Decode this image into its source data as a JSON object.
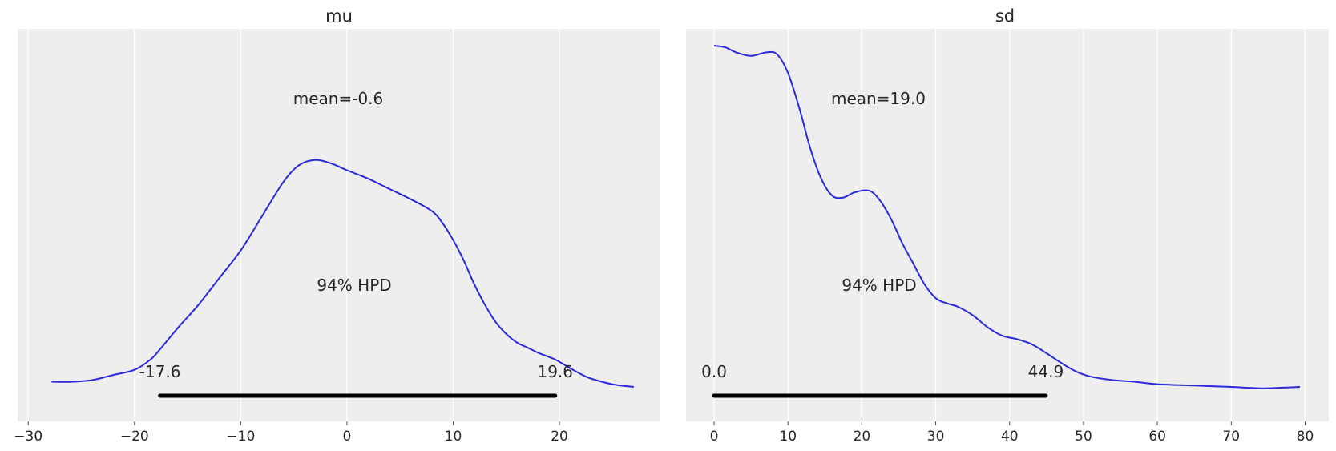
{
  "colors": {
    "kde_line": "#2a2adb",
    "hpd_bar": "#000000",
    "plot_background": "#eeeeee"
  },
  "chart_data": [
    {
      "type": "line",
      "subtype": "posterior-density",
      "title": "mu",
      "xlabel": "",
      "ylabel": "",
      "xlim": [
        -31,
        29.5
      ],
      "ylim": [
        0,
        1.0
      ],
      "xticks": [
        -30,
        -20,
        -10,
        0,
        10,
        20
      ],
      "xtick_labels": [
        "−30",
        "−20",
        "−10",
        "0",
        "10",
        "20"
      ],
      "grid": true,
      "x": [
        -27.8,
        -26,
        -24,
        -22,
        -20,
        -18.5,
        -17.6,
        -16,
        -14,
        -12,
        -10,
        -8,
        -6,
        -4.5,
        -3,
        -1.5,
        0,
        2,
        4,
        6,
        8,
        9,
        10,
        11,
        12,
        13,
        14,
        15,
        16,
        17,
        18,
        19.6,
        21,
        22.5,
        24,
        25.5,
        27
      ],
      "density": [
        0.015,
        0.015,
        0.02,
        0.035,
        0.05,
        0.08,
        0.11,
        0.17,
        0.24,
        0.32,
        0.4,
        0.5,
        0.6,
        0.65,
        0.665,
        0.655,
        0.635,
        0.61,
        0.58,
        0.55,
        0.515,
        0.48,
        0.43,
        0.37,
        0.3,
        0.24,
        0.19,
        0.155,
        0.13,
        0.115,
        0.1,
        0.08,
        0.055,
        0.03,
        0.015,
        0.005,
        0.0
      ],
      "mean_label": "mean=-0.6",
      "hpd_label": "94% HPD",
      "hpd_interval": [
        -17.6,
        19.6
      ],
      "hpd_low_label": "-17.6",
      "hpd_high_label": "19.6"
    },
    {
      "type": "line",
      "subtype": "posterior-density",
      "title": "sd",
      "xlabel": "",
      "ylabel": "",
      "xlim": [
        -3.8,
        83.2
      ],
      "ylim": [
        0,
        1.0
      ],
      "xticks": [
        0,
        10,
        20,
        30,
        40,
        50,
        60,
        70,
        80
      ],
      "xtick_labels": [
        "0",
        "10",
        "20",
        "30",
        "40",
        "50",
        "60",
        "70",
        "80"
      ],
      "grid": true,
      "x": [
        0,
        1.5,
        3,
        5,
        7,
        8.5,
        10,
        11.5,
        13,
        14.5,
        16,
        17.5,
        19,
        21,
        22.5,
        24,
        25.5,
        27,
        28.5,
        30,
        31.5,
        33,
        35,
        37,
        39,
        41,
        43,
        44.9,
        47,
        49,
        51,
        54,
        57,
        60,
        65,
        70,
        74,
        77,
        79.3
      ],
      "density": [
        1.0,
        0.995,
        0.98,
        0.97,
        0.98,
        0.975,
        0.92,
        0.82,
        0.7,
        0.61,
        0.56,
        0.555,
        0.57,
        0.575,
        0.545,
        0.49,
        0.42,
        0.36,
        0.3,
        0.26,
        0.245,
        0.235,
        0.21,
        0.175,
        0.15,
        0.14,
        0.125,
        0.1,
        0.07,
        0.045,
        0.03,
        0.02,
        0.015,
        0.008,
        0.004,
        0.0,
        -0.004,
        -0.002,
        0.0
      ],
      "mean_label": "mean=19.0",
      "hpd_label": "94% HPD",
      "hpd_interval": [
        0.0,
        44.9
      ],
      "hpd_low_label": "0.0",
      "hpd_high_label": "44.9"
    }
  ]
}
